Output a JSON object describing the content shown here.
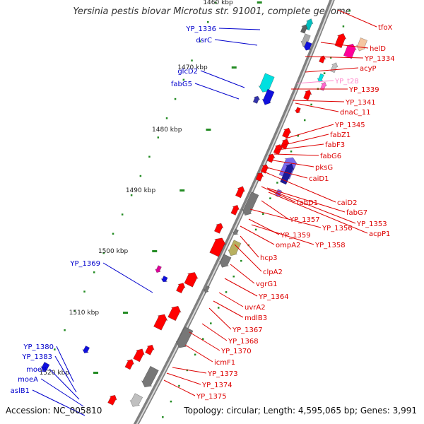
{
  "title": "Yersinia pestis biovar Microtus str. 91001, complete genome",
  "accession": "Accession: NC_005810",
  "summary": "Topology: circular; Length: 4,595,065 bp; Genes: 3,991",
  "colors": {
    "backbone": "#9a9a9a",
    "forward_label": "#0000cc",
    "reverse_label": "#dd0000",
    "trna_label": "#ff88cc",
    "tick": "#228B22"
  },
  "kbp_ticks": [
    "1460 kbp",
    "1470 kbp",
    "1480 kbp",
    "1490 kbp",
    "1500 kbp",
    "1510 kbp",
    "1520 kbp"
  ],
  "left_labels": [
    "YP_1336",
    "dsrC",
    "glcD2",
    "fabG5",
    "YP_1369",
    "YP_1380",
    "YP_1383",
    "moeB",
    "moeA",
    "aslB1"
  ],
  "right_labels": [
    "tfoX",
    "helD",
    "YP_1334",
    "acyP",
    "YP_t28",
    "YP_1339",
    "YP_1341",
    "dnaC_11",
    "YP_1345",
    "fabZ1",
    "fabF3",
    "fabG6",
    "pksG",
    "caiD1",
    "caiD2",
    "fabD1",
    "fabG7",
    "YP_1353",
    "YP_1357",
    "YP_1356",
    "acpP1",
    "YP_1359",
    "YP_1358",
    "ompA2",
    "hcp3",
    "clpA2",
    "vgrG1",
    "YP_1364",
    "uvrA2",
    "mdlB3",
    "YP_1367",
    "YP_1368",
    "YP_1370",
    "icmF1",
    "YP_1373",
    "YP_1374",
    "YP_1375"
  ]
}
